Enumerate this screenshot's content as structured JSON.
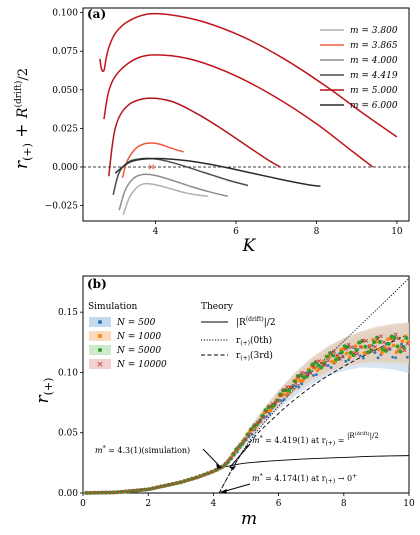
{
  "chart_data": [
    {
      "panel": "(a)",
      "type": "line",
      "xlabel": "K",
      "ylabel": "r(+) + R(drift)/2",
      "xlim": [
        2.2,
        10.3
      ],
      "ylim": [
        -0.035,
        0.103
      ],
      "xticks": [
        "4",
        "6",
        "8",
        "10"
      ],
      "yticks": [
        "−0.025",
        "0.000",
        "0.025",
        "0.050",
        "0.075",
        "0.100"
      ],
      "zero_line": true,
      "marker": {
        "x": 3.9,
        "y": 0.0,
        "symbol": "×",
        "color": "#ee5a3c"
      },
      "legend_position": "upper right",
      "series": [
        {
          "name": "m = 3.800",
          "color": "#b0b0b0",
          "x": [
            3.2,
            3.35,
            3.55,
            3.75,
            4.0,
            4.3,
            4.7,
            5.0,
            5.3
          ],
          "y": [
            -0.031,
            -0.02,
            -0.013,
            -0.0108,
            -0.0115,
            -0.0135,
            -0.0165,
            -0.018,
            -0.019
          ]
        },
        {
          "name": "m = 3.865",
          "color": "#ee5a3c",
          "x": [
            3.18,
            3.3,
            3.5,
            3.7,
            3.9,
            4.1,
            4.3,
            4.5,
            4.7
          ],
          "y": [
            -0.007,
            0.004,
            0.0117,
            0.0148,
            0.0155,
            0.0148,
            0.013,
            0.0113,
            0.0098
          ]
        },
        {
          "name": "m = 4.000",
          "color": "#8c8c8c",
          "x": [
            3.1,
            3.25,
            3.45,
            3.7,
            4.0,
            4.4,
            4.9,
            5.4,
            5.8
          ],
          "y": [
            -0.028,
            -0.015,
            -0.0075,
            -0.0048,
            -0.0055,
            -0.0085,
            -0.0128,
            -0.0165,
            -0.019
          ]
        },
        {
          "name": "m = 4.419",
          "color": "#4d4d4d",
          "x": [
            2.95,
            3.1,
            3.35,
            3.7,
            4.1,
            4.6,
            5.2,
            5.8,
            6.3
          ],
          "y": [
            -0.018,
            -0.0035,
            0.0035,
            0.0055,
            0.0048,
            0.0015,
            -0.0035,
            -0.0085,
            -0.012
          ]
        },
        {
          "name": "m = 5.000",
          "color": "#b4141a",
          "x": [
            2.84,
            3.0,
            3.3,
            3.8,
            4.4,
            5.0,
            5.6,
            6.2,
            6.8,
            7.1
          ],
          "y": [
            -0.006,
            0.025,
            0.0395,
            0.0445,
            0.0425,
            0.035,
            0.0255,
            0.015,
            0.0045,
            0.0
          ]
        },
        {
          "name": "m = 6.000",
          "color": "#2b2b2b",
          "x": [
            3.0,
            3.4,
            4.0,
            4.8,
            5.6,
            6.4,
            7.2,
            7.8,
            8.1
          ],
          "y": [
            -0.004,
            0.0035,
            0.0055,
            0.004,
            0.0005,
            -0.004,
            -0.0085,
            -0.0115,
            -0.0125
          ]
        },
        {
          "name": "",
          "color": "#c0141a",
          "x": [
            2.72,
            2.85,
            3.1,
            3.6,
            4.2,
            5.0,
            6.0,
            7.0,
            8.0,
            8.8,
            9.4
          ],
          "y": [
            0.031,
            0.05,
            0.062,
            0.071,
            0.0725,
            0.069,
            0.059,
            0.045,
            0.028,
            0.012,
            0.0
          ]
        },
        {
          "name": "",
          "color": "#c0141a",
          "x": [
            2.62,
            2.66,
            2.72,
            2.78,
            2.85,
            3.0,
            3.3,
            3.8,
            4.4,
            5.2,
            6.2,
            7.2,
            8.2,
            9.2,
            10.0
          ],
          "y": [
            0.07,
            0.0635,
            0.0625,
            0.071,
            0.078,
            0.0865,
            0.094,
            0.099,
            0.0985,
            0.094,
            0.084,
            0.07,
            0.053,
            0.034,
            0.0195
          ]
        }
      ]
    },
    {
      "panel": "(b)",
      "type": "line",
      "xlabel": "m",
      "ylabel": "r(+)",
      "xlim": [
        0,
        10
      ],
      "ylim": [
        0,
        0.18
      ],
      "xticks": [
        "0",
        "2",
        "4",
        "6",
        "8",
        "10"
      ],
      "yticks": [
        "0.00",
        "0.05",
        "0.10",
        "0.15"
      ],
      "simulation_legend_title": "Simulation",
      "theory_legend_title": "Theory",
      "simulation": [
        {
          "name": "N = 500",
          "color": "#2a78c2",
          "band": "#b6d0ea",
          "x": [
            0,
            1,
            2,
            3,
            3.5,
            4.0,
            4.3,
            4.5,
            5.0,
            5.5,
            6.0,
            6.5,
            7.0,
            7.5,
            8.0,
            8.5,
            9.0,
            9.5,
            10.0
          ],
          "y": [
            0.0,
            0.0005,
            0.003,
            0.009,
            0.013,
            0.018,
            0.022,
            0.027,
            0.044,
            0.061,
            0.076,
            0.088,
            0.099,
            0.107,
            0.113,
            0.117,
            0.118,
            0.118,
            0.116
          ]
        },
        {
          "name": "N = 1000",
          "color": "#ff7f0e",
          "band": "#fcd1ad",
          "x": [
            0,
            1,
            2,
            3,
            3.5,
            4.0,
            4.3,
            4.5,
            5.0,
            5.5,
            6.0,
            6.5,
            7.0,
            7.5,
            8.0,
            8.5,
            9.0,
            9.5,
            10.0
          ],
          "y": [
            0.0,
            0.0005,
            0.003,
            0.009,
            0.013,
            0.018,
            0.022,
            0.028,
            0.046,
            0.063,
            0.078,
            0.091,
            0.102,
            0.11,
            0.116,
            0.12,
            0.122,
            0.123,
            0.123
          ]
        },
        {
          "name": "N = 5000",
          "color": "#2ca02c",
          "band": "#bfe3bf",
          "x": [
            0,
            1,
            2,
            3,
            3.5,
            4.0,
            4.3,
            4.5,
            5.0,
            5.5,
            6.0,
            6.5,
            7.0,
            7.5,
            8.0,
            8.5,
            9.0,
            9.5,
            10.0
          ],
          "y": [
            0.0,
            0.0005,
            0.003,
            0.009,
            0.013,
            0.018,
            0.022,
            0.028,
            0.046,
            0.064,
            0.079,
            0.092,
            0.103,
            0.111,
            0.117,
            0.121,
            0.123,
            0.124,
            0.124
          ]
        },
        {
          "name": "N = 10000",
          "color": "#c13b3b",
          "band": "#efc4c0",
          "x": [
            0,
            1,
            2,
            3,
            3.5,
            4.0,
            4.3,
            4.5,
            5.0,
            5.5,
            6.0,
            6.5,
            7.0,
            7.5,
            8.0,
            8.5,
            9.0,
            9.5,
            10.0
          ],
          "y": [
            0.0,
            0.0005,
            0.003,
            0.009,
            0.013,
            0.018,
            0.022,
            0.028,
            0.046,
            0.063,
            0.079,
            0.092,
            0.103,
            0.111,
            0.117,
            0.121,
            0.124,
            0.125,
            0.125
          ]
        }
      ],
      "theory": [
        {
          "name": "|R(drift)|/2",
          "style": "solid",
          "x": [
            0,
            1,
            2,
            3,
            3.5,
            4.0,
            4.2,
            4.4,
            5.0,
            6.0,
            7.0,
            8.0,
            9.0,
            10.0
          ],
          "y": [
            0.0,
            0.0005,
            0.003,
            0.009,
            0.013,
            0.018,
            0.0205,
            0.022,
            0.0248,
            0.027,
            0.0285,
            0.0295,
            0.0305,
            0.031
          ]
        },
        {
          "name": "r(+)(0th)",
          "style": "dotted",
          "x": [
            4.174,
            5.0,
            6.0,
            7.0,
            8.0,
            9.0,
            10.0
          ],
          "y": [
            0.0,
            0.039,
            0.072,
            0.1,
            0.126,
            0.152,
            0.178
          ]
        },
        {
          "name": "r(+)(3rd)",
          "style": "dashed",
          "x": [
            4.174,
            5.0,
            6.0,
            7.0,
            8.0,
            9.0,
            10.0
          ],
          "y": [
            0.0,
            0.038,
            0.066,
            0.088,
            0.105,
            0.119,
            0.132
          ]
        }
      ],
      "annotations": [
        {
          "text": "m* = 4.3(1)(simulation)",
          "x": 4.3,
          "y": 0.022
        },
        {
          "text": "m* = 4.419(1) at r(+) = |R(drift)|/2",
          "x": 4.419,
          "y": 0.022
        },
        {
          "text": "m* = 4.174(1) at r(+) → 0+",
          "x": 4.174,
          "y": 0.0
        }
      ]
    }
  ]
}
